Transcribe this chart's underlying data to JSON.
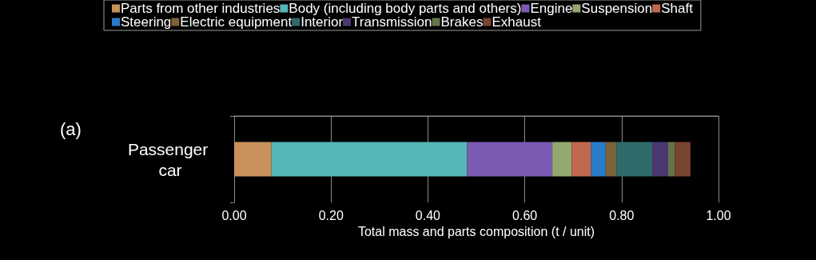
{
  "chart_data": {
    "type": "bar",
    "orientation": "horizontal",
    "stacked": true,
    "categories": [
      "Passenger car"
    ],
    "series": [
      {
        "name": "Parts from other industries",
        "color": "#c8915a",
        "values": [
          0.077
        ]
      },
      {
        "name": "Body (including body parts and others)",
        "color": "#56b6b9",
        "values": [
          0.404
        ]
      },
      {
        "name": "Engine",
        "color": "#7a5bb3",
        "values": [
          0.176
        ]
      },
      {
        "name": "Suspension",
        "color": "#93a870",
        "values": [
          0.04
        ]
      },
      {
        "name": "Shaft",
        "color": "#c0694f",
        "values": [
          0.04
        ]
      },
      {
        "name": "Steering",
        "color": "#2a7bc8",
        "values": [
          0.03
        ]
      },
      {
        "name": "Electric equipment",
        "color": "#7d6236",
        "values": [
          0.022
        ]
      },
      {
        "name": "Interior",
        "color": "#2f6b6b",
        "values": [
          0.074
        ]
      },
      {
        "name": "Transmission",
        "color": "#4a3870",
        "values": [
          0.033
        ]
      },
      {
        "name": "Brakes",
        "color": "#66744c",
        "values": [
          0.014
        ]
      },
      {
        "name": "Exhaust",
        "color": "#7a4530",
        "values": [
          0.032
        ]
      }
    ],
    "xlabel": "Total mass and parts composition (t / unit)",
    "xlim": [
      0,
      1
    ],
    "xticks": [
      {
        "value": 0,
        "label": "0.00"
      },
      {
        "value": 0.2,
        "label": "0.20"
      },
      {
        "value": 0.4,
        "label": "0.40"
      },
      {
        "value": 0.6,
        "label": "0.60"
      },
      {
        "value": 0.8,
        "label": "0.80"
      },
      {
        "value": 1,
        "label": "1.00"
      }
    ],
    "grid": "x",
    "legend": "top",
    "annotations": [
      "(a)"
    ]
  }
}
